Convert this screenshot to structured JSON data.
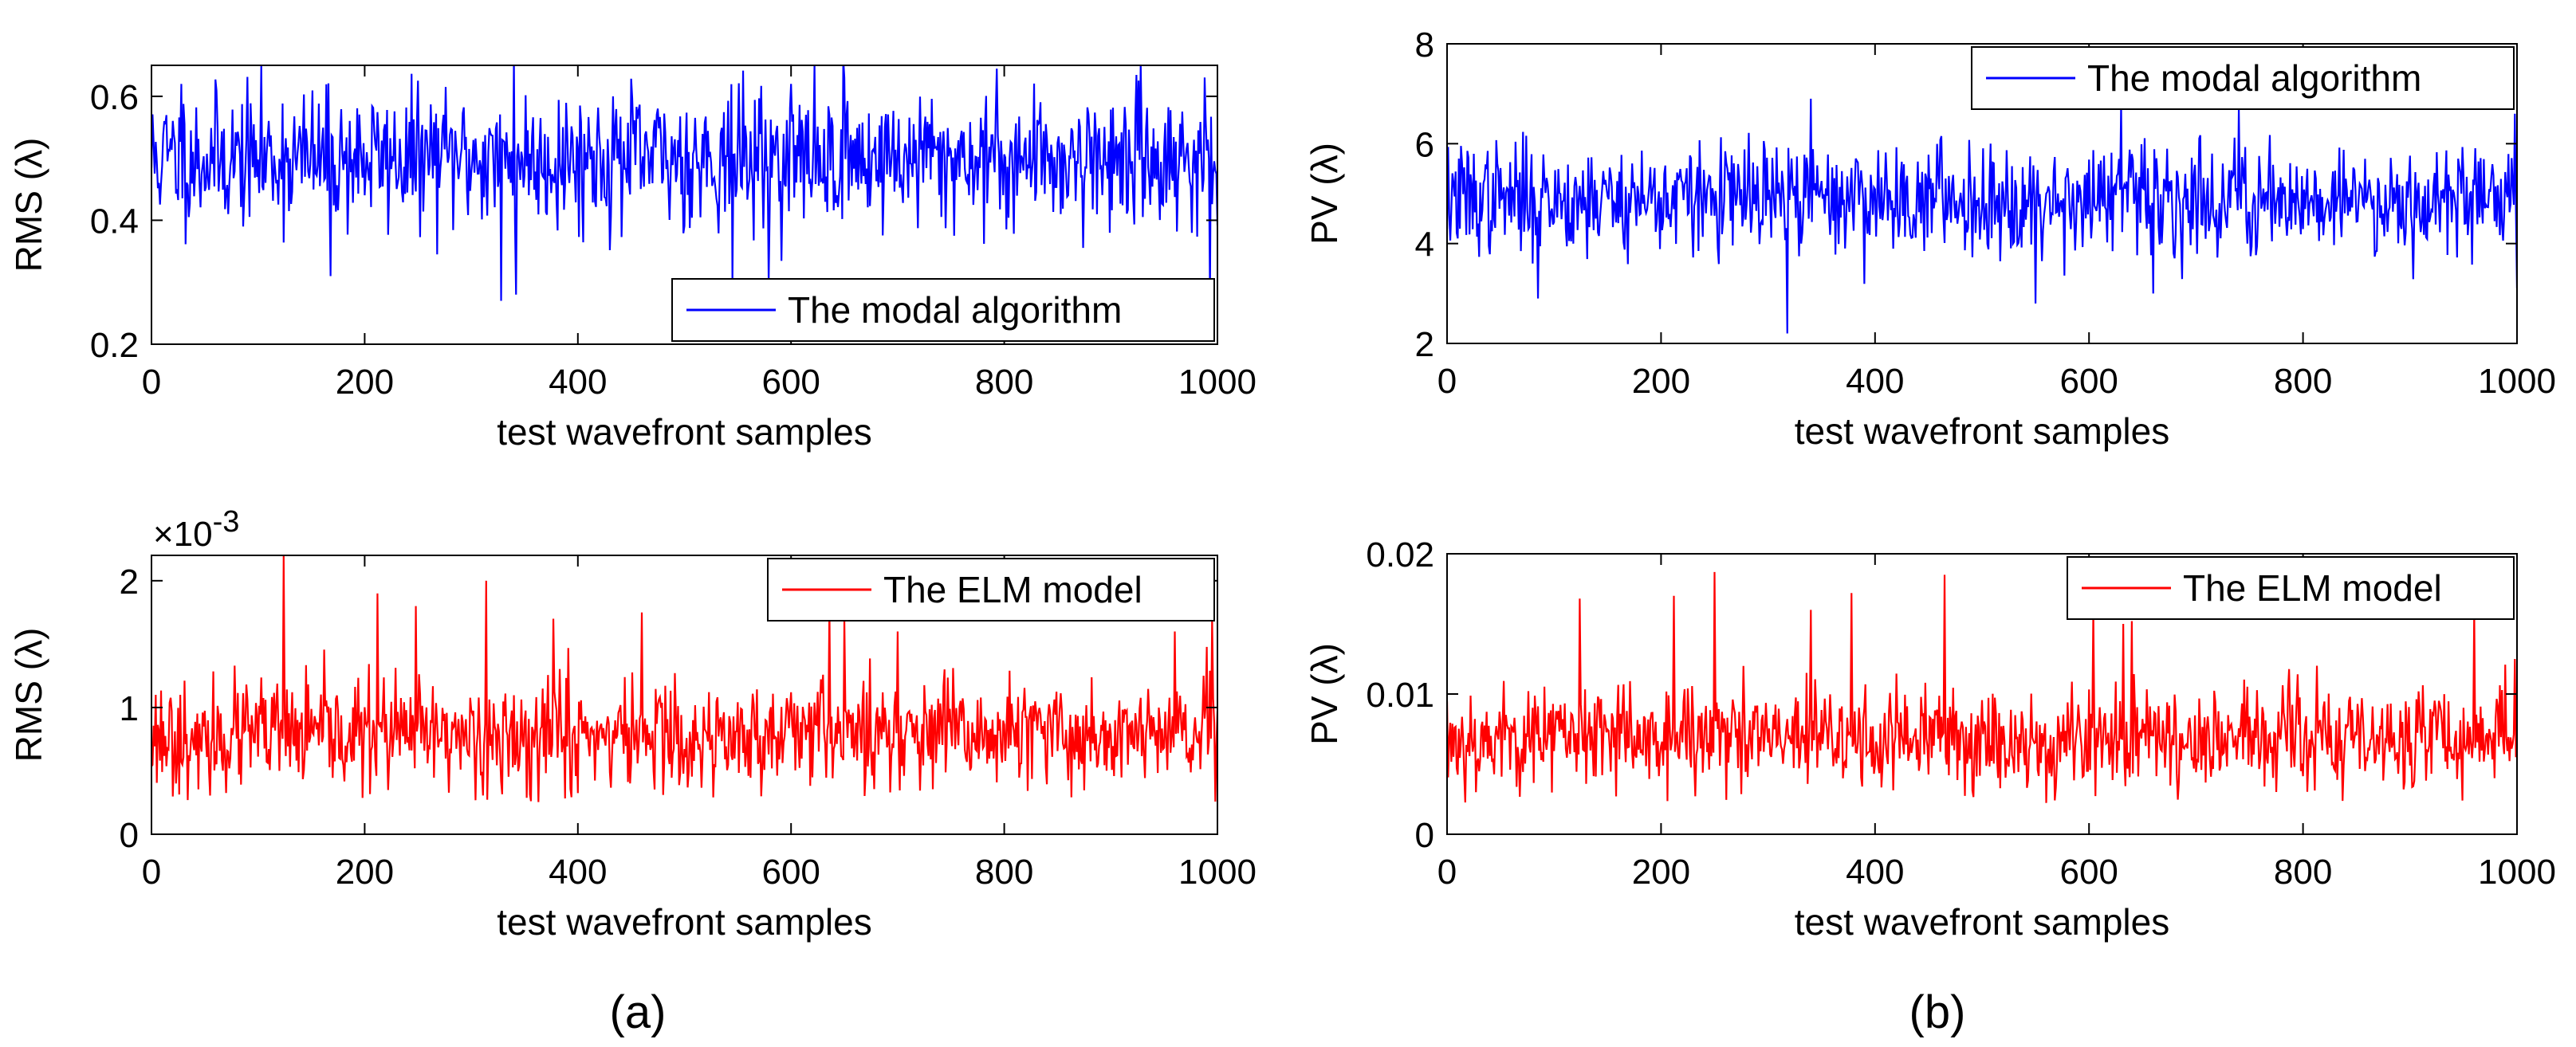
{
  "chart_data": [
    {
      "id": "a-top",
      "type": "line",
      "ylabel": "RMS (λ)",
      "xlabel": "test wavefront samples",
      "xlim": [
        0,
        1000
      ],
      "ylim": [
        0.2,
        0.65
      ],
      "xticks": [
        0,
        200,
        400,
        600,
        800,
        1000
      ],
      "xtick_labels": [
        "0",
        "200",
        "400",
        "600",
        "800",
        "1000"
      ],
      "yticks": [
        0.2,
        0.4,
        0.6
      ],
      "ytick_labels": [
        "0.2",
        "0.4",
        "0.6"
      ],
      "legend": "bottom-right",
      "series": [
        {
          "name": "The modal algorithm",
          "color": "#0000ff",
          "gen": {
            "n": 1000,
            "mean": 0.5,
            "sd": 0.055,
            "seed": 11,
            "spikes": [
              [
                328,
                0.27
              ],
              [
                342,
                0.28
              ],
              [
                545,
                0.3
              ],
              [
                579,
                0.3
              ],
              [
                993,
                0.28
              ],
              [
                168,
                0.31
              ],
              [
                340,
                0.66
              ],
              [
                650,
                0.63
              ],
              [
                600,
                0.62
              ],
              [
                28,
                0.62
              ]
            ]
          }
        }
      ]
    },
    {
      "id": "a-bottom",
      "type": "line",
      "ylabel": "RMS (λ)",
      "xlabel": "test wavefront samples",
      "exponent": "×10",
      "exponent_power": "-3",
      "xlim": [
        0,
        1000
      ],
      "ylim": [
        0,
        2.2
      ],
      "xticks": [
        0,
        200,
        400,
        600,
        800,
        1000
      ],
      "xtick_labels": [
        "0",
        "200",
        "400",
        "600",
        "800",
        "1000"
      ],
      "yticks": [
        0,
        1,
        2
      ],
      "ytick_labels": [
        "0",
        "1",
        "2"
      ],
      "legend": "top-right",
      "series": [
        {
          "name": "The ELM model",
          "color": "#ff0000",
          "gen": {
            "n": 1000,
            "mean": 0.78,
            "sd": 0.22,
            "seed": 23,
            "floor": 0.25,
            "spikes": [
              [
                124,
                2.2
              ],
              [
                212,
                1.9
              ],
              [
                248,
                1.8
              ],
              [
                314,
                2.0
              ],
              [
                377,
                1.7
              ],
              [
                460,
                1.75
              ],
              [
                636,
                1.8
              ],
              [
                650,
                1.7
              ],
              [
                700,
                1.6
              ],
              [
                960,
                1.6
              ],
              [
                995,
                1.7
              ]
            ]
          }
        }
      ]
    },
    {
      "id": "b-top",
      "type": "line",
      "ylabel": "PV (λ)",
      "xlabel": "test wavefront samples",
      "xlim": [
        0,
        1000
      ],
      "ylim": [
        2,
        8
      ],
      "xticks": [
        0,
        200,
        400,
        600,
        800,
        1000
      ],
      "xtick_labels": [
        "0",
        "200",
        "400",
        "600",
        "800",
        "1000"
      ],
      "yticks": [
        2,
        4,
        6,
        8
      ],
      "ytick_labels": [
        "2",
        "4",
        "6",
        "8"
      ],
      "legend": "top-right",
      "series": [
        {
          "name": "The modal algorithm",
          "color": "#0000ff",
          "gen": {
            "n": 1000,
            "mean": 4.9,
            "sd": 0.55,
            "seed": 37,
            "spikes": [
              [
                318,
                2.2
              ],
              [
                85,
                2.9
              ],
              [
                550,
                2.8
              ],
              [
                660,
                3.0
              ],
              [
                1000,
                3.1
              ],
              [
                340,
                6.9
              ],
              [
                630,
                6.8
              ],
              [
                740,
                6.7
              ],
              [
                998,
                6.6
              ]
            ]
          }
        }
      ]
    },
    {
      "id": "b-bottom",
      "type": "line",
      "ylabel": "PV (λ)",
      "xlabel": "test wavefront samples",
      "xlim": [
        0,
        1000
      ],
      "ylim": [
        0,
        0.02
      ],
      "xticks": [
        0,
        200,
        400,
        600,
        800,
        1000
      ],
      "xtick_labels": [
        "0",
        "200",
        "400",
        "600",
        "800",
        "1000"
      ],
      "yticks": [
        0,
        0.01,
        0.02
      ],
      "ytick_labels": [
        "0",
        "0.01",
        "0.02"
      ],
      "legend": "top-right",
      "series": [
        {
          "name": "The ELM model",
          "color": "#ff0000",
          "gen": {
            "n": 1000,
            "mean": 0.0068,
            "sd": 0.0019,
            "seed": 53,
            "floor": 0.0022,
            "spikes": [
              [
                124,
                0.0168
              ],
              [
                212,
                0.017
              ],
              [
                250,
                0.0187
              ],
              [
                340,
                0.016
              ],
              [
                378,
                0.0172
              ],
              [
                465,
                0.0185
              ],
              [
                604,
                0.016
              ],
              [
                632,
                0.015
              ],
              [
                640,
                0.0152
              ],
              [
                960,
                0.016
              ],
              [
                998,
                0.0125
              ]
            ]
          }
        }
      ]
    }
  ],
  "captions": {
    "left": "(a)",
    "right": "(b)"
  }
}
